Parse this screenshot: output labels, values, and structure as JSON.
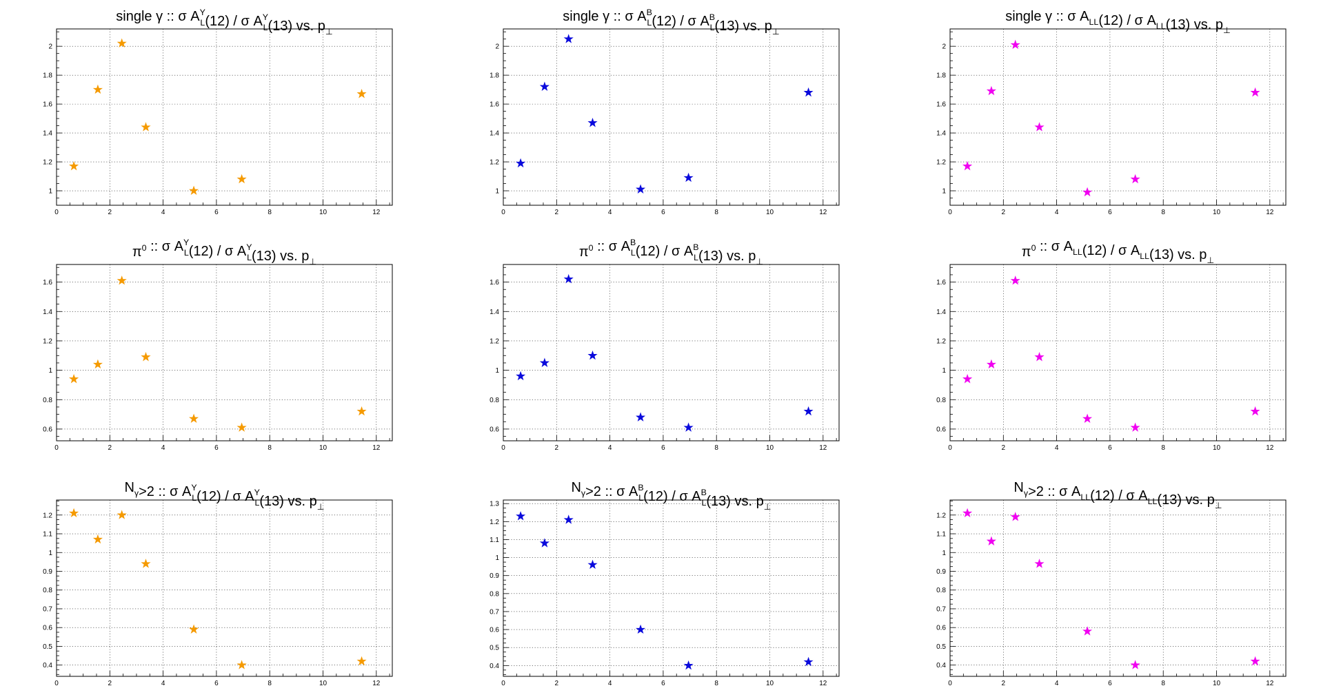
{
  "figure": {
    "grid": true,
    "x_ticks": [
      0,
      2,
      4,
      6,
      8,
      10,
      12
    ],
    "x_range": [
      0,
      12.6
    ],
    "colors": {
      "yellow": "#f59a00",
      "blue": "#0a0adc",
      "magenta": "#f000f0"
    },
    "marker": "open-star"
  },
  "chart_data": [
    {
      "id": "sg-y",
      "type": "scatter",
      "color_key": "yellow",
      "title_parts": [
        "single γ :: σ A",
        "L",
        "Y",
        "(12) / σ A",
        "L",
        "Y",
        "(13) vs. p",
        "⊥",
        ""
      ],
      "xlim": [
        0,
        12.6
      ],
      "ylim": [
        0.9,
        2.12
      ],
      "y_ticks": [
        1,
        1.2,
        1.4,
        1.6,
        1.8,
        2
      ],
      "y_tick_labels": [
        "1",
        "1.2",
        "1.4",
        "1.6",
        "1.8",
        "2"
      ],
      "x": [
        0.65,
        1.55,
        2.45,
        3.35,
        5.15,
        6.95,
        11.45
      ],
      "y": [
        1.17,
        1.7,
        2.02,
        1.44,
        1.0,
        1.08,
        1.67
      ]
    },
    {
      "id": "sg-b",
      "type": "scatter",
      "color_key": "blue",
      "title_parts": [
        "single γ :: σ A",
        "L",
        "B",
        "(12) / σ A",
        "L",
        "B",
        "(13) vs. p",
        "⊥",
        ""
      ],
      "xlim": [
        0,
        12.6
      ],
      "ylim": [
        0.9,
        2.12
      ],
      "y_ticks": [
        1,
        1.2,
        1.4,
        1.6,
        1.8,
        2
      ],
      "y_tick_labels": [
        "1",
        "1.2",
        "1.4",
        "1.6",
        "1.8",
        "2"
      ],
      "x": [
        0.65,
        1.55,
        2.45,
        3.35,
        5.15,
        6.95,
        11.45
      ],
      "y": [
        1.19,
        1.72,
        2.05,
        1.47,
        1.01,
        1.09,
        1.68
      ]
    },
    {
      "id": "sg-ll",
      "type": "scatter",
      "color_key": "magenta",
      "title_parts": [
        "single γ :: σ A",
        "LL",
        "",
        "(12) / σ A",
        "LL",
        "",
        "(13) vs. p",
        "⊥",
        ""
      ],
      "xlim": [
        0,
        12.6
      ],
      "ylim": [
        0.9,
        2.12
      ],
      "y_ticks": [
        1,
        1.2,
        1.4,
        1.6,
        1.8,
        2
      ],
      "y_tick_labels": [
        "1",
        "1.2",
        "1.4",
        "1.6",
        "1.8",
        "2"
      ],
      "x": [
        0.65,
        1.55,
        2.45,
        3.35,
        5.15,
        6.95,
        11.45
      ],
      "y": [
        1.17,
        1.69,
        2.01,
        1.44,
        0.99,
        1.08,
        1.68
      ]
    },
    {
      "id": "pi-y",
      "type": "scatter",
      "color_key": "yellow",
      "title_parts": [
        "π",
        "",
        "0",
        " :: σ A",
        "L",
        "Y",
        "(12) / σ A",
        "L",
        "Y",
        "(13) vs. p",
        "⊥",
        ""
      ],
      "xlim": [
        0,
        12.6
      ],
      "ylim": [
        0.52,
        1.72
      ],
      "y_ticks": [
        0.6,
        0.8,
        1,
        1.2,
        1.4,
        1.6
      ],
      "y_tick_labels": [
        "0.6",
        "0.8",
        "1",
        "1.2",
        "1.4",
        "1.6"
      ],
      "x": [
        0.65,
        1.55,
        2.45,
        3.35,
        5.15,
        6.95,
        11.45
      ],
      "y": [
        0.94,
        1.04,
        1.61,
        1.09,
        0.67,
        0.61,
        0.72
      ]
    },
    {
      "id": "pi-b",
      "type": "scatter",
      "color_key": "blue",
      "title_parts": [
        "π",
        "",
        "0",
        " :: σ A",
        "L",
        "B",
        "(12) / σ A",
        "L",
        "B",
        "(13) vs. p",
        "⊥",
        ""
      ],
      "xlim": [
        0,
        12.6
      ],
      "ylim": [
        0.52,
        1.72
      ],
      "y_ticks": [
        0.6,
        0.8,
        1,
        1.2,
        1.4,
        1.6
      ],
      "y_tick_labels": [
        "0.6",
        "0.8",
        "1",
        "1.2",
        "1.4",
        "1.6"
      ],
      "x": [
        0.65,
        1.55,
        2.45,
        3.35,
        5.15,
        6.95,
        11.45
      ],
      "y": [
        0.96,
        1.05,
        1.62,
        1.1,
        0.68,
        0.61,
        0.72
      ]
    },
    {
      "id": "pi-ll",
      "type": "scatter",
      "color_key": "magenta",
      "title_parts": [
        "π",
        "",
        "0",
        " :: σ A",
        "LL",
        "",
        "(12) / σ A",
        "LL",
        "",
        "(13) vs. p",
        "⊥",
        ""
      ],
      "xlim": [
        0,
        12.6
      ],
      "ylim": [
        0.52,
        1.72
      ],
      "y_ticks": [
        0.6,
        0.8,
        1,
        1.2,
        1.4,
        1.6
      ],
      "y_tick_labels": [
        "0.6",
        "0.8",
        "1",
        "1.2",
        "1.4",
        "1.6"
      ],
      "x": [
        0.65,
        1.55,
        2.45,
        3.35,
        5.15,
        6.95,
        11.45
      ],
      "y": [
        0.94,
        1.04,
        1.61,
        1.09,
        0.67,
        0.61,
        0.72
      ]
    },
    {
      "id": "ng-y",
      "type": "scatter",
      "color_key": "yellow",
      "title_parts": [
        "N",
        "γ",
        "",
        ">2 :: σ A",
        "L",
        "Y",
        "(12) / σ A",
        "L",
        "Y",
        "(13) vs. p",
        "⊥",
        ""
      ],
      "xlim": [
        0,
        12.6
      ],
      "ylim": [
        0.34,
        1.28
      ],
      "y_ticks": [
        0.4,
        0.5,
        0.6,
        0.7,
        0.8,
        0.9,
        1,
        1.1,
        1.2
      ],
      "y_tick_labels": [
        "0.4",
        "0.5",
        "0.6",
        "0.7",
        "0.8",
        "0.9",
        "1",
        "1.1",
        "1.2"
      ],
      "x": [
        0.65,
        1.55,
        2.45,
        3.35,
        5.15,
        6.95,
        11.45
      ],
      "y": [
        1.21,
        1.07,
        1.2,
        0.94,
        0.59,
        0.4,
        0.42
      ]
    },
    {
      "id": "ng-b",
      "type": "scatter",
      "color_key": "blue",
      "title_parts": [
        "N",
        "γ",
        "",
        ">2 :: σ A",
        "L",
        "B",
        "(12) / σ A",
        "L",
        "B",
        "(13) vs. p",
        "⊥",
        ""
      ],
      "xlim": [
        0,
        12.6
      ],
      "ylim": [
        0.34,
        1.32
      ],
      "y_ticks": [
        0.4,
        0.5,
        0.6,
        0.7,
        0.8,
        0.9,
        1,
        1.1,
        1.2,
        1.3
      ],
      "y_tick_labels": [
        "0.4",
        "0.5",
        "0.6",
        "0.7",
        "0.8",
        "0.9",
        "1",
        "1.1",
        "1.2",
        "1.3"
      ],
      "x": [
        0.65,
        1.55,
        2.45,
        3.35,
        5.15,
        6.95,
        11.45
      ],
      "y": [
        1.23,
        1.08,
        1.21,
        0.96,
        0.6,
        0.4,
        0.42
      ]
    },
    {
      "id": "ng-ll",
      "type": "scatter",
      "color_key": "magenta",
      "title_parts": [
        "N",
        "γ",
        "",
        ">2 :: σ A",
        "LL",
        "",
        "(12) / σ A",
        "LL",
        "",
        "(13) vs. p",
        "⊥",
        ""
      ],
      "xlim": [
        0,
        12.6
      ],
      "ylim": [
        0.34,
        1.28
      ],
      "y_ticks": [
        0.4,
        0.5,
        0.6,
        0.7,
        0.8,
        0.9,
        1,
        1.1,
        1.2
      ],
      "y_tick_labels": [
        "0.4",
        "0.5",
        "0.6",
        "0.7",
        "0.8",
        "0.9",
        "1",
        "1.1",
        "1.2"
      ],
      "x": [
        0.65,
        1.55,
        2.45,
        3.35,
        5.15,
        6.95,
        11.45
      ],
      "y": [
        1.21,
        1.06,
        1.19,
        0.94,
        0.58,
        0.4,
        0.42
      ]
    }
  ]
}
